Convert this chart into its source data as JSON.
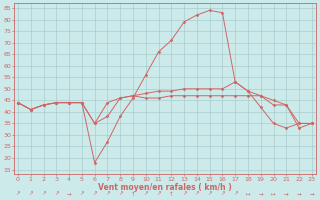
{
  "x": [
    0,
    1,
    2,
    3,
    4,
    5,
    6,
    7,
    8,
    9,
    10,
    11,
    12,
    13,
    14,
    15,
    16,
    17,
    18,
    19,
    20,
    21,
    22,
    23
  ],
  "line1": [
    44,
    41,
    43,
    44,
    44,
    44,
    35,
    38,
    46,
    47,
    46,
    46,
    47,
    47,
    47,
    47,
    47,
    47,
    47,
    47,
    43,
    43,
    33,
    35
  ],
  "line2": [
    44,
    41,
    43,
    44,
    44,
    44,
    35,
    44,
    46,
    47,
    48,
    49,
    49,
    50,
    50,
    50,
    50,
    53,
    49,
    47,
    45,
    43,
    35,
    35
  ],
  "line3": [
    44,
    41,
    43,
    44,
    44,
    44,
    18,
    27,
    38,
    46,
    56,
    66,
    71,
    79,
    82,
    84,
    83,
    53,
    49,
    42,
    35,
    33,
    35,
    35
  ],
  "background_color": "#cceaea",
  "grid_color": "#aacccc",
  "line_color": "#cc6666",
  "marker_color": "#cc6666",
  "xlabel": "Vent moyen/en rafales ( km/h )",
  "ylim": [
    13,
    87
  ],
  "xlim": [
    -0.3,
    23.3
  ],
  "yticks": [
    15,
    20,
    25,
    30,
    35,
    40,
    45,
    50,
    55,
    60,
    65,
    70,
    75,
    80,
    85
  ],
  "xticks": [
    0,
    1,
    2,
    3,
    4,
    5,
    6,
    7,
    8,
    9,
    10,
    11,
    12,
    13,
    14,
    15,
    16,
    17,
    18,
    19,
    20,
    21,
    22,
    23
  ],
  "arrows": [
    "↗",
    "↗",
    "↗",
    "↗",
    "→",
    "↗",
    "↗",
    "↗",
    "↗",
    "↑",
    "↗",
    "↗",
    "↑",
    "↗",
    "↗",
    "↗",
    "↗",
    "↗",
    "↦",
    "→",
    "↦",
    "→",
    "→",
    "→"
  ]
}
